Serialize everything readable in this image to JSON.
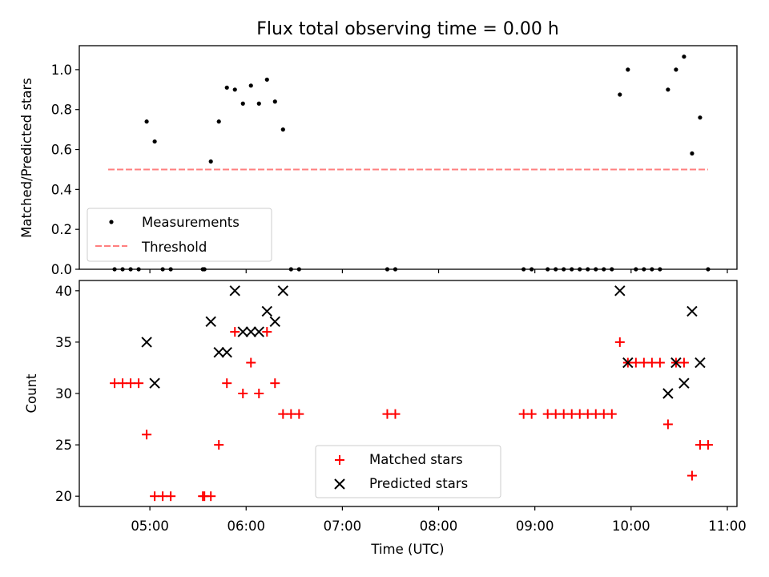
{
  "figure": {
    "title": "Flux total observing time = 0.00 h"
  },
  "chart_data": [
    {
      "type": "scatter",
      "title": "Flux total observing time = 0.00 h",
      "xlabel": "",
      "ylabel": "Matched/Predicted stars",
      "ylim": [
        0,
        1.12
      ],
      "yticks": [
        0.0,
        0.2,
        0.4,
        0.6,
        0.8,
        1.0
      ],
      "ytick_labels": [
        "0.0",
        "0.2",
        "0.4",
        "0.6",
        "0.8",
        "1.0"
      ],
      "legend_position": "lower-left",
      "series": [
        {
          "name": "Measurements",
          "marker": "dot",
          "color": "#000000",
          "points": [
            [
              "04:38",
              0
            ],
            [
              "04:43",
              0
            ],
            [
              "04:48",
              0
            ],
            [
              "04:53",
              0
            ],
            [
              "04:58",
              0.74
            ],
            [
              "05:03",
              0.64
            ],
            [
              "05:08",
              0
            ],
            [
              "05:13",
              0
            ],
            [
              "05:33",
              0
            ],
            [
              "05:34",
              0
            ],
            [
              "05:38",
              0.54
            ],
            [
              "05:43",
              0.74
            ],
            [
              "05:48",
              0.91
            ],
            [
              "05:53",
              0.9
            ],
            [
              "05:58",
              0.83
            ],
            [
              "06:03",
              0.92
            ],
            [
              "06:08",
              0.83
            ],
            [
              "06:13",
              0.95
            ],
            [
              "06:18",
              0.84
            ],
            [
              "06:23",
              0.7
            ],
            [
              "06:28",
              0
            ],
            [
              "06:33",
              0
            ],
            [
              "07:28",
              0
            ],
            [
              "07:33",
              0
            ],
            [
              "08:53",
              0
            ],
            [
              "08:58",
              0
            ],
            [
              "09:08",
              0
            ],
            [
              "09:13",
              0
            ],
            [
              "09:18",
              0
            ],
            [
              "09:23",
              0
            ],
            [
              "09:28",
              0
            ],
            [
              "09:33",
              0
            ],
            [
              "09:38",
              0
            ],
            [
              "09:43",
              0
            ],
            [
              "09:48",
              0
            ],
            [
              "09:53",
              0.875
            ],
            [
              "09:58",
              1.0
            ],
            [
              "10:03",
              0
            ],
            [
              "10:08",
              0
            ],
            [
              "10:13",
              0
            ],
            [
              "10:18",
              0
            ],
            [
              "10:23",
              0.9
            ],
            [
              "10:28",
              1.0
            ],
            [
              "10:33",
              1.065
            ],
            [
              "10:38",
              0.58
            ],
            [
              "10:43",
              0.76
            ],
            [
              "10:48",
              0
            ]
          ]
        },
        {
          "name": "Threshold",
          "type": "line",
          "style": "dashed",
          "color": "#ff7f7f",
          "x": [
            "04:34",
            "10:48"
          ],
          "y": [
            0.5,
            0.5
          ]
        }
      ]
    },
    {
      "type": "scatter",
      "xlabel": "Time (UTC)",
      "ylabel": "Count",
      "ylim": [
        19,
        41
      ],
      "xlim": [
        "04:16",
        "11:06"
      ],
      "yticks": [
        20,
        25,
        30,
        35,
        40
      ],
      "ytick_labels": [
        "20",
        "25",
        "30",
        "35",
        "40"
      ],
      "xticks": [
        "05:00",
        "06:00",
        "07:00",
        "08:00",
        "09:00",
        "10:00",
        "11:00"
      ],
      "xtick_labels": [
        "05:00",
        "06:00",
        "07:00",
        "08:00",
        "09:00",
        "10:00",
        "11:00"
      ],
      "legend_position": "lower-center",
      "series": [
        {
          "name": "Matched stars",
          "marker": "plus",
          "color": "#ff0000",
          "points": [
            [
              "04:38",
              31
            ],
            [
              "04:43",
              31
            ],
            [
              "04:48",
              31
            ],
            [
              "04:53",
              31
            ],
            [
              "04:58",
              26
            ],
            [
              "05:03",
              20
            ],
            [
              "05:08",
              20
            ],
            [
              "05:13",
              20
            ],
            [
              "05:33",
              20
            ],
            [
              "05:34",
              20
            ],
            [
              "05:38",
              20
            ],
            [
              "05:43",
              25
            ],
            [
              "05:48",
              31
            ],
            [
              "05:53",
              36
            ],
            [
              "05:58",
              30
            ],
            [
              "06:03",
              33
            ],
            [
              "06:08",
              30
            ],
            [
              "06:13",
              36
            ],
            [
              "06:18",
              31
            ],
            [
              "06:23",
              28
            ],
            [
              "06:28",
              28
            ],
            [
              "06:33",
              28
            ],
            [
              "07:28",
              28
            ],
            [
              "07:33",
              28
            ],
            [
              "08:53",
              28
            ],
            [
              "08:58",
              28
            ],
            [
              "09:08",
              28
            ],
            [
              "09:13",
              28
            ],
            [
              "09:18",
              28
            ],
            [
              "09:23",
              28
            ],
            [
              "09:28",
              28
            ],
            [
              "09:33",
              28
            ],
            [
              "09:38",
              28
            ],
            [
              "09:43",
              28
            ],
            [
              "09:48",
              28
            ],
            [
              "09:53",
              35
            ],
            [
              "09:58",
              33
            ],
            [
              "10:03",
              33
            ],
            [
              "10:08",
              33
            ],
            [
              "10:13",
              33
            ],
            [
              "10:18",
              33
            ],
            [
              "10:23",
              27
            ],
            [
              "10:28",
              33
            ],
            [
              "10:33",
              33
            ],
            [
              "10:38",
              22
            ],
            [
              "10:43",
              25
            ],
            [
              "10:48",
              25
            ]
          ]
        },
        {
          "name": "Predicted stars",
          "marker": "x",
          "color": "#000000",
          "points": [
            [
              "04:58",
              35
            ],
            [
              "05:03",
              31
            ],
            [
              "05:38",
              37
            ],
            [
              "05:43",
              34
            ],
            [
              "05:48",
              34
            ],
            [
              "05:53",
              40
            ],
            [
              "05:58",
              36
            ],
            [
              "06:03",
              36
            ],
            [
              "06:08",
              36
            ],
            [
              "06:13",
              38
            ],
            [
              "06:18",
              37
            ],
            [
              "06:23",
              40
            ],
            [
              "09:53",
              40
            ],
            [
              "09:58",
              33
            ],
            [
              "10:23",
              30
            ],
            [
              "10:28",
              33
            ],
            [
              "10:33",
              31
            ],
            [
              "10:38",
              38
            ],
            [
              "10:43",
              33
            ]
          ]
        }
      ]
    }
  ]
}
